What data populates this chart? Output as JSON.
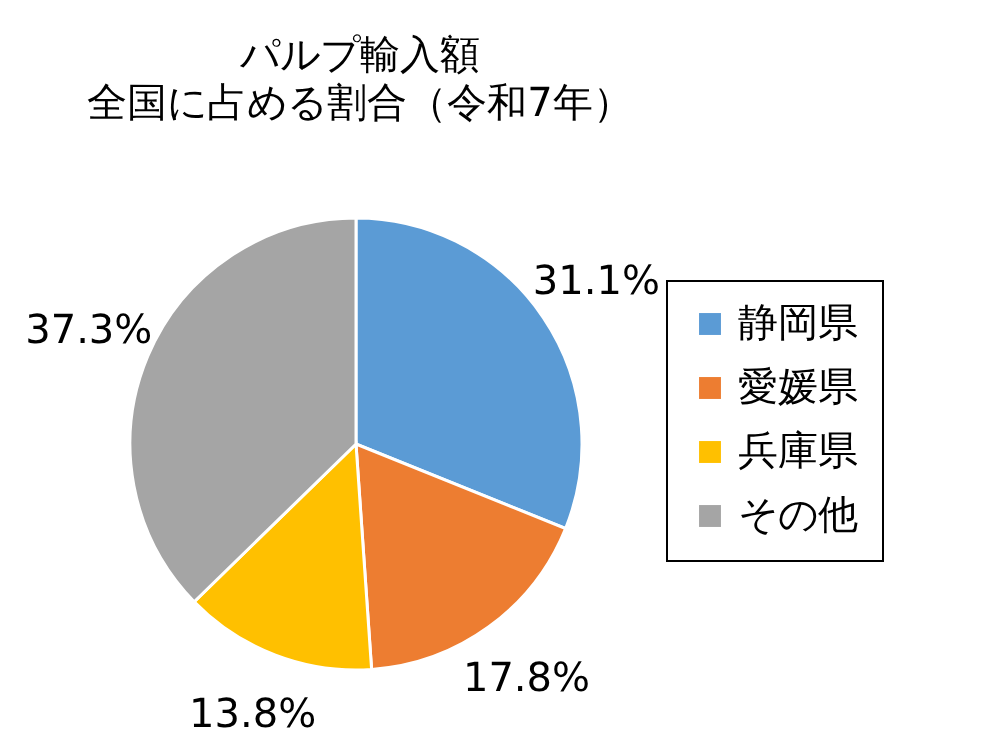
{
  "chart_data": {
    "type": "pie",
    "title": "パルプ輸入額",
    "subtitle": "全国に占める割合（令和7年）",
    "categories": [
      "静岡県",
      "愛媛県",
      "兵庫県",
      "その他"
    ],
    "values": [
      31.1,
      17.8,
      13.8,
      37.3
    ],
    "colors": [
      "#5b9bd5",
      "#ed7d31",
      "#ffc000",
      "#a5a5a5"
    ],
    "value_labels": [
      "31.1%",
      "17.8%",
      "13.8%",
      "37.3%"
    ],
    "legend": "right"
  }
}
